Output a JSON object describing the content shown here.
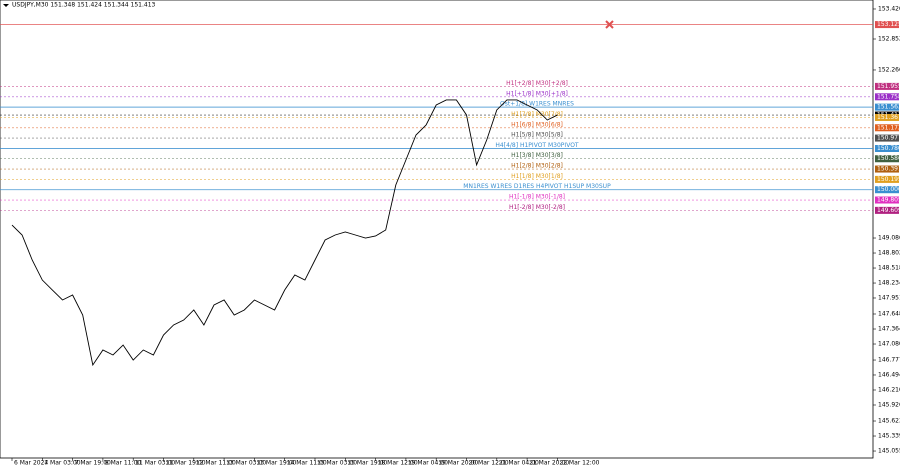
{
  "chart_data": {
    "type": "line",
    "title": "USDJPY,M30  151.348 151.424 151.344 151.413",
    "categories": [
      "6 Mar 2024",
      null,
      null,
      "7 Mar 03:00",
      null,
      null,
      "7 Mar 19:00",
      null,
      null,
      "8 Mar 11:00",
      null,
      null,
      "11 Mar 03:00",
      null,
      null,
      "11 Mar 19:00",
      null,
      null,
      "12 Mar 11:00",
      null,
      null,
      "13 Mar 03:00",
      null,
      null,
      "13 Mar 19:00",
      null,
      null,
      "14 Mar 11:00",
      null,
      null,
      "15 Mar 03:00",
      null,
      null,
      "15 Mar 19:00",
      null,
      null,
      "18 Mar 12:00",
      null,
      null,
      "19 Mar 04:00",
      null,
      null,
      "19 Mar 20:00",
      null,
      null,
      "20 Mar 12:00",
      null,
      null,
      "21 Mar 04:00",
      null,
      null,
      "21 Mar 20:00",
      null,
      null,
      "22 Mar 12:00"
    ],
    "series": [
      {
        "name": "USDJPY,M30",
        "color": "#000000",
        "values": [
          149.332,
          149.143,
          148.67,
          148.291,
          148.102,
          147.913,
          148.007,
          147.629,
          146.683,
          146.967,
          146.872,
          147.061,
          146.777,
          146.967,
          146.872,
          147.25,
          147.44,
          147.534,
          147.724,
          147.44,
          147.818,
          147.913,
          147.629,
          147.724,
          147.913,
          147.818,
          147.724,
          148.102,
          148.386,
          148.291,
          148.67,
          149.048,
          149.143,
          149.2,
          149.143,
          149.086,
          149.124,
          149.238,
          150.089,
          150.562,
          151.035,
          151.225,
          151.603,
          151.698,
          151.698,
          151.414,
          150.468,
          150.941,
          151.509,
          151.698,
          151.698,
          151.603,
          151.509,
          151.319,
          151.413
        ]
      }
    ],
    "ylim": [
      144.923,
      153.59
    ],
    "yticks": [
      {
        "value": 153.42,
        "label": "153.420"
      },
      {
        "value": 152.852,
        "label": "152.852"
      },
      {
        "value": 152.266,
        "label": "152.266"
      },
      {
        "value": 149.086,
        "label": "149.086"
      },
      {
        "value": 148.802,
        "label": "148.802"
      },
      {
        "value": 148.518,
        "label": "148.518"
      },
      {
        "value": 148.234,
        "label": "148.234"
      },
      {
        "value": 147.951,
        "label": "147.951"
      },
      {
        "value": 147.648,
        "label": "147.648"
      },
      {
        "value": 147.364,
        "label": "147.364"
      },
      {
        "value": 147.08,
        "label": "147.080"
      },
      {
        "value": 146.777,
        "label": "146.777"
      },
      {
        "value": 146.494,
        "label": "146.494"
      },
      {
        "value": 146.21,
        "label": "146.210"
      },
      {
        "value": 145.926,
        "label": "145.926"
      },
      {
        "value": 145.623,
        "label": "145.623"
      },
      {
        "value": 145.339,
        "label": "145.339"
      },
      {
        "value": 145.055,
        "label": "145.055"
      }
    ],
    "levels": [
      {
        "name": null,
        "value": 153.125,
        "color": "#e05050"
      },
      {
        "name": "H1[+2/8] M30[+2/8]",
        "value": 151.955,
        "color": "#c03080"
      },
      {
        "name": "H1[+1/8] M30[+1/8]",
        "value": 151.758,
        "color": "#9b30c8"
      },
      {
        "name": "Ost+1/8] W1RES MNRES",
        "value": 151.563,
        "color": "#3a8fd0"
      },
      {
        "name": null,
        "value": 151.413,
        "color": "#000000"
      },
      {
        "name": "H1[7/8] M30[7/8]",
        "value": 151.367,
        "color": "#e0a020"
      },
      {
        "name": "H1[6/8] M30[6/8]",
        "value": 151.172,
        "color": "#e06020"
      },
      {
        "name": "H1[5/8] M30[5/8]",
        "value": 150.977,
        "color": "#505050"
      },
      {
        "name": "H4[4/8] H1PIVOT M30PIVOT",
        "value": 150.78,
        "value_label": "150.780",
        "color": "#3a8fd0"
      },
      {
        "name": "H1[3/8] M30[3/8]",
        "value": 150.586,
        "color": "#406040"
      },
      {
        "name": "H1[2/8] M30[2/8]",
        "value": 150.391,
        "color": "#b06010"
      },
      {
        "name": "H1[1/8] M30[1/8]",
        "value": 150.195,
        "color": "#e0a020"
      },
      {
        "name": "MN1RES W1RES D1RES H4PIVOT H1SUP M30SUP",
        "value": 150,
        "value_label": "150.000",
        "color": "#3a8fd0"
      },
      {
        "name": "H1[-1/8] M30[-1/8]",
        "value": 149.805,
        "color": "#e030c0"
      },
      {
        "name": "H1[-2/8] M30[-2/8]",
        "value": 149.609,
        "color": "#b02080"
      }
    ]
  }
}
